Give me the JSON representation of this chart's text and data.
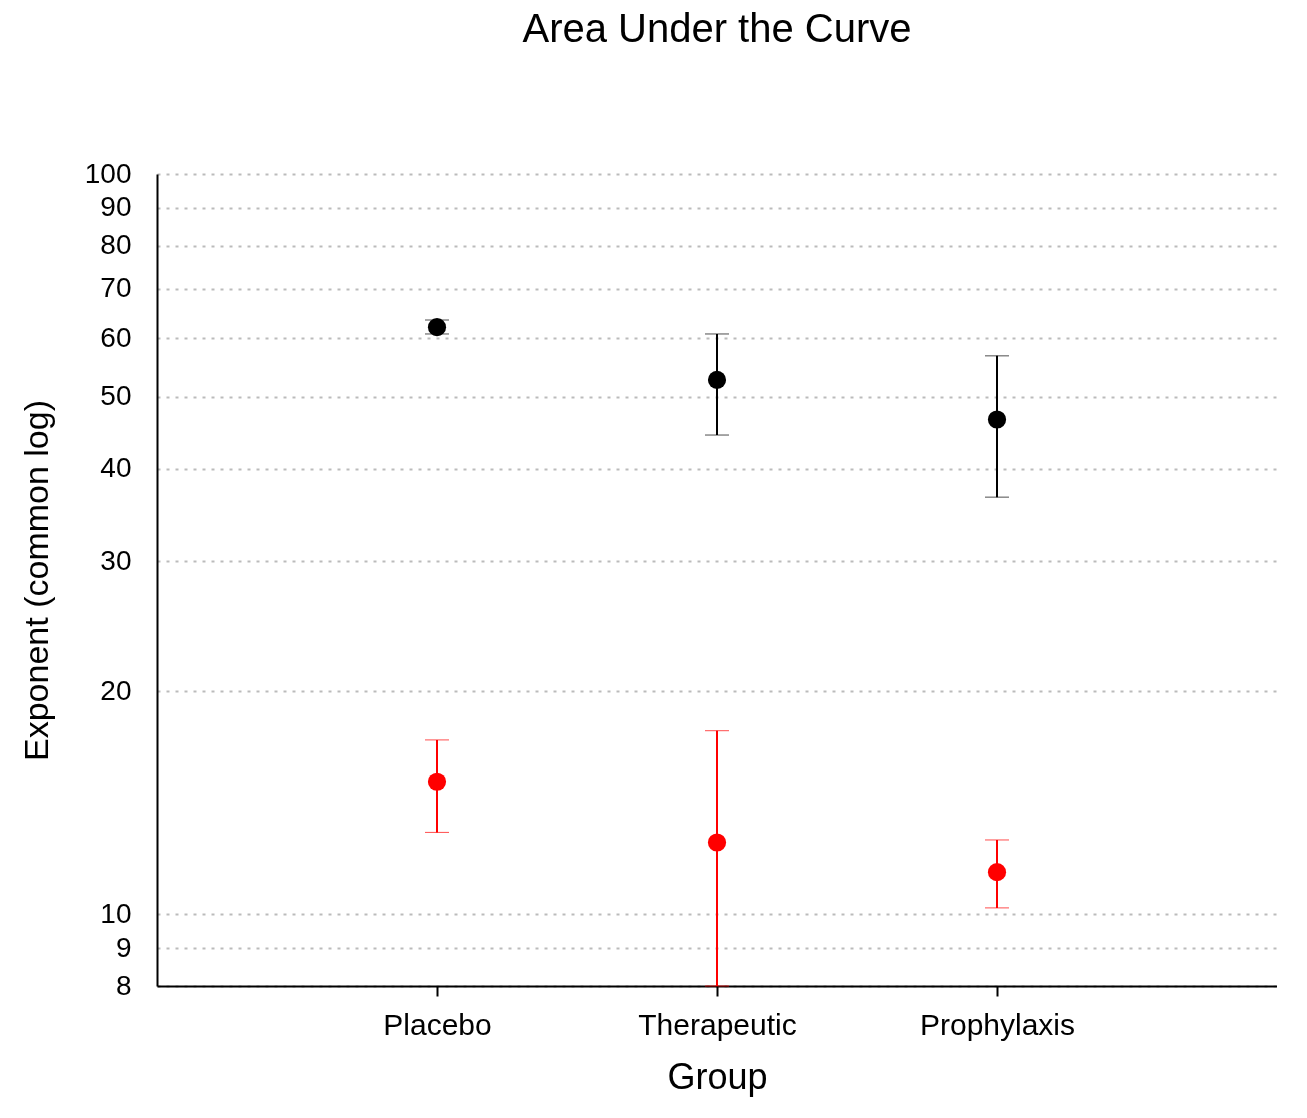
{
  "chart_data": {
    "type": "scatter",
    "title": "Area Under the Curve",
    "xlabel": "Group",
    "ylabel": "Exponent (common log)",
    "categories": [
      "Placebo",
      "Therapeutic",
      "Prophylaxis"
    ],
    "series": [
      {
        "color": "#000000",
        "values": [
          62.1,
          52.7,
          46.6
        ],
        "errors": [
          [
            60.8,
            63.5
          ],
          [
            44.4,
            60.8
          ],
          [
            36.6,
            56.8
          ]
        ]
      },
      {
        "color": "#ff0000",
        "values": [
          15.1,
          12.5,
          11.4
        ],
        "errors": [
          [
            12.9,
            17.2
          ],
          [
            8,
            17.7
          ],
          [
            10.2,
            12.6
          ]
        ]
      }
    ],
    "log": "y",
    "ylim": [
      8,
      100
    ],
    "yticks": [
      8,
      9,
      10,
      20,
      30,
      40,
      50,
      60,
      70,
      80,
      90,
      100
    ],
    "grid": "y",
    "marker": "circle",
    "legend": false
  }
}
